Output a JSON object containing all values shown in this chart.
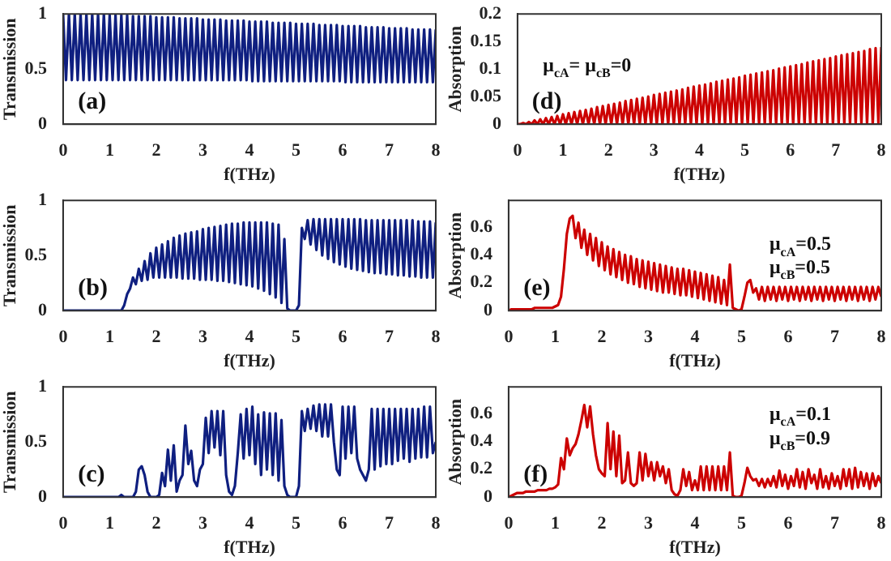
{
  "chart_data": [
    {
      "type": "line",
      "xlabel": "f(THz)",
      "ylabel": "Transmission",
      "xlim": [
        0,
        8
      ],
      "xticks": [
        0,
        1,
        2,
        3,
        4,
        5,
        6,
        7,
        8
      ],
      "ylim": [
        0,
        1
      ],
      "yticks": [
        0,
        0.5,
        1
      ],
      "annotations": [
        "(a)"
      ],
      "x": [
        0,
        0.0625,
        0.125,
        0.1875,
        0.25,
        0.3125,
        0.375,
        0.4375,
        0.5,
        0.5625,
        0.625,
        0.6875,
        0.75,
        0.8125,
        0.875,
        0.9375,
        1,
        1.0625,
        1.125,
        1.1875,
        1.25,
        1.3125,
        1.375,
        1.4375,
        1.5,
        1.5625,
        1.625,
        1.6875,
        1.75,
        1.8125,
        1.875,
        1.9375,
        2,
        2.0625,
        2.125,
        2.1875,
        2.25,
        2.3125,
        2.375,
        2.4375,
        2.5,
        2.5625,
        2.625,
        2.6875,
        2.75,
        2.8125,
        2.875,
        2.9375,
        3,
        3.0625,
        3.125,
        3.1875,
        3.25,
        3.3125,
        3.375,
        3.4375,
        3.5,
        3.5625,
        3.625,
        3.6875,
        3.75,
        3.8125,
        3.875,
        3.9375,
        4,
        4.0625,
        4.125,
        4.1875,
        4.25,
        4.3125,
        4.375,
        4.4375,
        4.5,
        4.5625,
        4.625,
        4.6875,
        4.75,
        4.8125,
        4.875,
        4.9375,
        5,
        5.0625,
        5.125,
        5.1875,
        5.25,
        5.3125,
        5.375,
        5.4375,
        5.5,
        5.5625,
        5.625,
        5.6875,
        5.75,
        5.8125,
        5.875,
        5.9375,
        6,
        6.0625,
        6.125,
        6.1875,
        6.25,
        6.3125,
        6.375,
        6.4375,
        6.5,
        6.5625,
        6.625,
        6.6875,
        6.75,
        6.8125,
        6.875,
        6.9375,
        7,
        7.0625,
        7.125,
        7.1875,
        7.25,
        7.3125,
        7.375,
        7.4375,
        7.5,
        7.5625,
        7.625,
        7.6875,
        7.75,
        7.8125,
        7.875,
        7.9375,
        8
      ],
      "series": [
        {
          "color": "#0f1f80",
          "values": [
            1,
            0.4,
            1,
            0.4,
            1,
            0.4,
            1,
            0.4,
            1,
            0.4,
            1,
            0.4,
            1,
            0.4,
            1,
            0.4,
            0.99,
            0.4,
            0.99,
            0.4,
            0.99,
            0.4,
            0.99,
            0.4,
            0.98,
            0.4,
            0.98,
            0.4,
            0.98,
            0.4,
            0.98,
            0.4,
            0.97,
            0.4,
            0.97,
            0.4,
            0.97,
            0.4,
            0.97,
            0.4,
            0.96,
            0.4,
            0.96,
            0.4,
            0.96,
            0.4,
            0.96,
            0.4,
            0.95,
            0.4,
            0.95,
            0.4,
            0.95,
            0.4,
            0.95,
            0.4,
            0.94,
            0.4,
            0.94,
            0.4,
            0.94,
            0.4,
            0.94,
            0.4,
            0.93,
            0.39,
            0.93,
            0.39,
            0.93,
            0.39,
            0.93,
            0.39,
            0.92,
            0.39,
            0.92,
            0.39,
            0.92,
            0.39,
            0.92,
            0.39,
            0.91,
            0.39,
            0.91,
            0.39,
            0.91,
            0.39,
            0.91,
            0.39,
            0.9,
            0.39,
            0.9,
            0.39,
            0.9,
            0.39,
            0.9,
            0.39,
            0.89,
            0.38,
            0.89,
            0.38,
            0.89,
            0.38,
            0.89,
            0.38,
            0.88,
            0.38,
            0.88,
            0.38,
            0.88,
            0.38,
            0.88,
            0.38,
            0.87,
            0.38,
            0.87,
            0.38,
            0.87,
            0.38,
            0.87,
            0.38,
            0.86,
            0.38,
            0.86,
            0.38,
            0.86,
            0.38,
            0.86,
            0.38,
            0.86
          ]
        }
      ]
    },
    {
      "type": "line",
      "xlabel": "f(THz)",
      "ylabel": "Absorption",
      "xlim": [
        0,
        8
      ],
      "xticks": [
        0,
        1,
        2,
        3,
        4,
        5,
        6,
        7,
        8
      ],
      "ylim": [
        0,
        0.2
      ],
      "yticks": [
        0,
        0.05,
        0.1,
        0.15,
        0.2
      ],
      "annotations": [
        "(d)",
        "μ$_{cA}$= μ$_{cB}$=0"
      ],
      "x": [
        0,
        0.0625,
        0.125,
        0.1875,
        0.25,
        0.3125,
        0.375,
        0.4375,
        0.5,
        0.5625,
        0.625,
        0.6875,
        0.75,
        0.8125,
        0.875,
        0.9375,
        1,
        1.0625,
        1.125,
        1.1875,
        1.25,
        1.3125,
        1.375,
        1.4375,
        1.5,
        1.5625,
        1.625,
        1.6875,
        1.75,
        1.8125,
        1.875,
        1.9375,
        2,
        2.0625,
        2.125,
        2.1875,
        2.25,
        2.3125,
        2.375,
        2.4375,
        2.5,
        2.5625,
        2.625,
        2.6875,
        2.75,
        2.8125,
        2.875,
        2.9375,
        3,
        3.0625,
        3.125,
        3.1875,
        3.25,
        3.3125,
        3.375,
        3.4375,
        3.5,
        3.5625,
        3.625,
        3.6875,
        3.75,
        3.8125,
        3.875,
        3.9375,
        4,
        4.0625,
        4.125,
        4.1875,
        4.25,
        4.3125,
        4.375,
        4.4375,
        4.5,
        4.5625,
        4.625,
        4.6875,
        4.75,
        4.8125,
        4.875,
        4.9375,
        5,
        5.0625,
        5.125,
        5.1875,
        5.25,
        5.3125,
        5.375,
        5.4375,
        5.5,
        5.5625,
        5.625,
        5.6875,
        5.75,
        5.8125,
        5.875,
        5.9375,
        6,
        6.0625,
        6.125,
        6.1875,
        6.25,
        6.3125,
        6.375,
        6.4375,
        6.5,
        6.5625,
        6.625,
        6.6875,
        6.75,
        6.8125,
        6.875,
        6.9375,
        7,
        7.0625,
        7.125,
        7.1875,
        7.25,
        7.3125,
        7.375,
        7.4375,
        7.5,
        7.5625,
        7.625,
        7.6875,
        7.75,
        7.8125,
        7.875,
        7.9375,
        8
      ],
      "series": [
        {
          "color": "#cc0000",
          "values": [
            0,
            0,
            0.002,
            0,
            0.004,
            0,
            0.007,
            0,
            0.009,
            0,
            0.011,
            0,
            0.013,
            0,
            0.015,
            0,
            0.018,
            0,
            0.02,
            0,
            0.022,
            0,
            0.024,
            0,
            0.026,
            0,
            0.028,
            0,
            0.031,
            0,
            0.033,
            0,
            0.035,
            0,
            0.037,
            0,
            0.039,
            0,
            0.042,
            0,
            0.044,
            0,
            0.046,
            0,
            0.048,
            0,
            0.05,
            0,
            0.053,
            0,
            0.055,
            0,
            0.057,
            0,
            0.059,
            0,
            0.061,
            0,
            0.063,
            0,
            0.066,
            0,
            0.068,
            0,
            0.07,
            0,
            0.072,
            0,
            0.074,
            0,
            0.077,
            0,
            0.079,
            0,
            0.081,
            0,
            0.083,
            0,
            0.085,
            0,
            0.088,
            0,
            0.09,
            0,
            0.092,
            0,
            0.094,
            0,
            0.096,
            0,
            0.098,
            0,
            0.101,
            0,
            0.103,
            0,
            0.105,
            0,
            0.107,
            0,
            0.109,
            0,
            0.112,
            0,
            0.114,
            0,
            0.116,
            0,
            0.118,
            0,
            0.12,
            0,
            0.123,
            0,
            0.125,
            0,
            0.127,
            0,
            0.129,
            0,
            0.131,
            0,
            0.133,
            0,
            0.136,
            0,
            0.138,
            0,
            0.14
          ]
        }
      ]
    },
    {
      "type": "line",
      "xlabel": "f(THz)",
      "ylabel": "Transmission",
      "xlim": [
        0,
        8
      ],
      "xticks": [
        0,
        1,
        2,
        3,
        4,
        5,
        6,
        7,
        8
      ],
      "ylim": [
        0,
        1
      ],
      "yticks": [
        0,
        0.5,
        1
      ],
      "annotations": [
        "(b)"
      ],
      "x": [
        0,
        0.0625,
        0.125,
        0.1875,
        0.25,
        0.3125,
        0.375,
        0.4375,
        0.5,
        0.5625,
        0.625,
        0.6875,
        0.75,
        0.8125,
        0.875,
        0.9375,
        1,
        1.0625,
        1.125,
        1.1875,
        1.25,
        1.3125,
        1.375,
        1.4375,
        1.5,
        1.5625,
        1.625,
        1.6875,
        1.75,
        1.8125,
        1.875,
        1.9375,
        2,
        2.0625,
        2.125,
        2.1875,
        2.25,
        2.3125,
        2.375,
        2.4375,
        2.5,
        2.5625,
        2.625,
        2.6875,
        2.75,
        2.8125,
        2.875,
        2.9375,
        3,
        3.0625,
        3.125,
        3.1875,
        3.25,
        3.3125,
        3.375,
        3.4375,
        3.5,
        3.5625,
        3.625,
        3.6875,
        3.75,
        3.8125,
        3.875,
        3.9375,
        4,
        4.0625,
        4.125,
        4.1875,
        4.25,
        4.3125,
        4.375,
        4.4375,
        4.5,
        4.5625,
        4.625,
        4.6875,
        4.75,
        4.8125,
        4.875,
        4.9375,
        5,
        5.0625,
        5.125,
        5.1875,
        5.25,
        5.3125,
        5.375,
        5.4375,
        5.5,
        5.5625,
        5.625,
        5.6875,
        5.75,
        5.8125,
        5.875,
        5.9375,
        6,
        6.0625,
        6.125,
        6.1875,
        6.25,
        6.3125,
        6.375,
        6.4375,
        6.5,
        6.5625,
        6.625,
        6.6875,
        6.75,
        6.8125,
        6.875,
        6.9375,
        7,
        7.0625,
        7.125,
        7.1875,
        7.25,
        7.3125,
        7.375,
        7.4375,
        7.5,
        7.5625,
        7.625,
        7.6875,
        7.75,
        7.8125,
        7.875,
        7.9375,
        8
      ],
      "series": [
        {
          "color": "#0f1f80",
          "values": [
            0,
            0,
            0,
            0,
            0,
            0,
            0,
            0,
            0,
            0,
            0,
            0,
            0,
            0,
            0,
            0,
            0,
            0,
            0,
            0,
            0,
            0.05,
            0.15,
            0.2,
            0.3,
            0.24,
            0.38,
            0.27,
            0.45,
            0.28,
            0.52,
            0.3,
            0.57,
            0.3,
            0.6,
            0.3,
            0.63,
            0.3,
            0.66,
            0.3,
            0.68,
            0.29,
            0.7,
            0.29,
            0.71,
            0.29,
            0.72,
            0.28,
            0.74,
            0.28,
            0.75,
            0.28,
            0.76,
            0.27,
            0.77,
            0.27,
            0.78,
            0.26,
            0.79,
            0.25,
            0.79,
            0.24,
            0.8,
            0.23,
            0.8,
            0.22,
            0.8,
            0.2,
            0.8,
            0.18,
            0.8,
            0.15,
            0.79,
            0.12,
            0.78,
            0.07,
            0.65,
            0.02,
            0,
            0,
            0,
            0.05,
            0.75,
            0.65,
            0.82,
            0.6,
            0.83,
            0.55,
            0.83,
            0.5,
            0.83,
            0.47,
            0.83,
            0.44,
            0.83,
            0.42,
            0.83,
            0.4,
            0.83,
            0.38,
            0.83,
            0.37,
            0.83,
            0.36,
            0.82,
            0.35,
            0.82,
            0.34,
            0.82,
            0.34,
            0.82,
            0.33,
            0.82,
            0.33,
            0.82,
            0.32,
            0.82,
            0.32,
            0.82,
            0.31,
            0.82,
            0.31,
            0.81,
            0.3,
            0.81,
            0.3,
            0.81,
            0.3,
            0.8
          ]
        }
      ]
    },
    {
      "type": "line",
      "xlabel": "f(THz)",
      "ylabel": "Absorption",
      "xlim": [
        0,
        8
      ],
      "xticks": [
        0,
        1,
        2,
        3,
        4,
        5,
        6,
        7,
        8
      ],
      "ylim": [
        0,
        0.79
      ],
      "yticks": [
        0,
        0.2,
        0.4,
        0.6
      ],
      "annotations": [
        "(e)",
        "μ$_{cA}$=0.5",
        "μ$_{cB}$=0.5"
      ],
      "x": [
        0,
        0.0625,
        0.125,
        0.1875,
        0.25,
        0.3125,
        0.375,
        0.4375,
        0.5,
        0.5625,
        0.625,
        0.6875,
        0.75,
        0.8125,
        0.875,
        0.9375,
        1,
        1.0625,
        1.125,
        1.1875,
        1.25,
        1.3125,
        1.375,
        1.4375,
        1.5,
        1.5625,
        1.625,
        1.6875,
        1.75,
        1.8125,
        1.875,
        1.9375,
        2,
        2.0625,
        2.125,
        2.1875,
        2.25,
        2.3125,
        2.375,
        2.4375,
        2.5,
        2.5625,
        2.625,
        2.6875,
        2.75,
        2.8125,
        2.875,
        2.9375,
        3,
        3.0625,
        3.125,
        3.1875,
        3.25,
        3.3125,
        3.375,
        3.4375,
        3.5,
        3.5625,
        3.625,
        3.6875,
        3.75,
        3.8125,
        3.875,
        3.9375,
        4,
        4.0625,
        4.125,
        4.1875,
        4.25,
        4.3125,
        4.375,
        4.4375,
        4.5,
        4.5625,
        4.625,
        4.6875,
        4.75,
        4.8125,
        4.875,
        4.9375,
        5,
        5.0625,
        5.125,
        5.1875,
        5.25,
        5.3125,
        5.375,
        5.4375,
        5.5,
        5.5625,
        5.625,
        5.6875,
        5.75,
        5.8125,
        5.875,
        5.9375,
        6,
        6.0625,
        6.125,
        6.1875,
        6.25,
        6.3125,
        6.375,
        6.4375,
        6.5,
        6.5625,
        6.625,
        6.6875,
        6.75,
        6.8125,
        6.875,
        6.9375,
        7,
        7.0625,
        7.125,
        7.1875,
        7.25,
        7.3125,
        7.375,
        7.4375,
        7.5,
        7.5625,
        7.625,
        7.6875,
        7.75,
        7.8125,
        7.875,
        7.9375,
        8
      ],
      "series": [
        {
          "color": "#cc0000",
          "values": [
            0,
            0.01,
            0.01,
            0.01,
            0.01,
            0.01,
            0.01,
            0.01,
            0.01,
            0.02,
            0.02,
            0.02,
            0.02,
            0.02,
            0.02,
            0.02,
            0.03,
            0.04,
            0.1,
            0.3,
            0.55,
            0.66,
            0.68,
            0.52,
            0.63,
            0.45,
            0.58,
            0.4,
            0.55,
            0.36,
            0.52,
            0.32,
            0.49,
            0.29,
            0.46,
            0.26,
            0.44,
            0.24,
            0.42,
            0.22,
            0.4,
            0.2,
            0.39,
            0.19,
            0.37,
            0.17,
            0.36,
            0.16,
            0.35,
            0.15,
            0.34,
            0.14,
            0.33,
            0.13,
            0.32,
            0.13,
            0.31,
            0.12,
            0.3,
            0.11,
            0.3,
            0.11,
            0.29,
            0.1,
            0.28,
            0.09,
            0.27,
            0.08,
            0.26,
            0.07,
            0.25,
            0.06,
            0.24,
            0.05,
            0.22,
            0.04,
            0.33,
            0.02,
            0.01,
            0,
            0.01,
            0.1,
            0.2,
            0.22,
            0.13,
            0.16,
            0.08,
            0.17,
            0.07,
            0.17,
            0.08,
            0.17,
            0.07,
            0.17,
            0.08,
            0.17,
            0.07,
            0.17,
            0.08,
            0.17,
            0.07,
            0.17,
            0.08,
            0.17,
            0.07,
            0.17,
            0.08,
            0.17,
            0.07,
            0.17,
            0.08,
            0.17,
            0.07,
            0.17,
            0.08,
            0.17,
            0.07,
            0.17,
            0.08,
            0.17,
            0.07,
            0.17,
            0.08,
            0.17,
            0.07,
            0.17,
            0.08,
            0.17,
            0.1
          ]
        }
      ]
    },
    {
      "type": "line",
      "xlabel": "f(THz)",
      "ylabel": "Transmission",
      "xlim": [
        0,
        8
      ],
      "xticks": [
        0,
        1,
        2,
        3,
        4,
        5,
        6,
        7,
        8
      ],
      "ylim": [
        0,
        1
      ],
      "yticks": [
        0,
        0.5,
        1
      ],
      "annotations": [
        "(c)"
      ],
      "x": [
        0,
        0.0625,
        0.125,
        0.1875,
        0.25,
        0.3125,
        0.375,
        0.4375,
        0.5,
        0.5625,
        0.625,
        0.6875,
        0.75,
        0.8125,
        0.875,
        0.9375,
        1,
        1.0625,
        1.125,
        1.1875,
        1.25,
        1.3125,
        1.375,
        1.4375,
        1.5,
        1.5625,
        1.625,
        1.6875,
        1.75,
        1.8125,
        1.875,
        1.9375,
        2,
        2.0625,
        2.125,
        2.1875,
        2.25,
        2.3125,
        2.375,
        2.4375,
        2.5,
        2.5625,
        2.625,
        2.6875,
        2.75,
        2.8125,
        2.875,
        2.9375,
        3,
        3.0625,
        3.125,
        3.1875,
        3.25,
        3.3125,
        3.375,
        3.4375,
        3.5,
        3.5625,
        3.625,
        3.6875,
        3.75,
        3.8125,
        3.875,
        3.9375,
        4,
        4.0625,
        4.125,
        4.1875,
        4.25,
        4.3125,
        4.375,
        4.4375,
        4.5,
        4.5625,
        4.625,
        4.6875,
        4.75,
        4.8125,
        4.875,
        4.9375,
        5,
        5.0625,
        5.125,
        5.1875,
        5.25,
        5.3125,
        5.375,
        5.4375,
        5.5,
        5.5625,
        5.625,
        5.6875,
        5.75,
        5.8125,
        5.875,
        5.9375,
        6,
        6.0625,
        6.125,
        6.1875,
        6.25,
        6.3125,
        6.375,
        6.4375,
        6.5,
        6.5625,
        6.625,
        6.6875,
        6.75,
        6.8125,
        6.875,
        6.9375,
        7,
        7.0625,
        7.125,
        7.1875,
        7.25,
        7.3125,
        7.375,
        7.4375,
        7.5,
        7.5625,
        7.625,
        7.6875,
        7.75,
        7.8125,
        7.875,
        7.9375,
        8
      ],
      "series": [
        {
          "color": "#0f1f80",
          "values": [
            0,
            0,
            0,
            0,
            0,
            0,
            0,
            0,
            0,
            0,
            0,
            0,
            0,
            0,
            0,
            0,
            0,
            0,
            0,
            0,
            0.02,
            0,
            0,
            0,
            0,
            0.05,
            0.25,
            0.28,
            0.2,
            0.05,
            0,
            0,
            0,
            0.02,
            0.22,
            0.1,
            0.43,
            0.15,
            0.47,
            0.05,
            0.15,
            0.2,
            0.65,
            0.3,
            0.42,
            0.15,
            0.1,
            0.25,
            0.3,
            0.72,
            0.4,
            0.78,
            0.45,
            0.78,
            0.38,
            0.78,
            0.2,
            0.05,
            0.02,
            0.1,
            0.4,
            0.75,
            0.35,
            0.8,
            0.38,
            0.82,
            0.3,
            0.75,
            0.2,
            0.77,
            0.25,
            0.76,
            0.2,
            0.76,
            0.15,
            0.7,
            0.1,
            0.02,
            0,
            0,
            0,
            0.1,
            0.78,
            0.6,
            0.8,
            0.62,
            0.83,
            0.6,
            0.84,
            0.55,
            0.84,
            0.55,
            0.84,
            0.5,
            0.25,
            0.2,
            0.82,
            0.35,
            0.82,
            0.4,
            0.82,
            0.35,
            0.25,
            0.2,
            0.15,
            0.25,
            0.8,
            0.25,
            0.8,
            0.28,
            0.8,
            0.3,
            0.8,
            0.3,
            0.8,
            0.33,
            0.8,
            0.35,
            0.8,
            0.32,
            0.8,
            0.35,
            0.8,
            0.36,
            0.82,
            0.36,
            0.82,
            0.4,
            0.5
          ]
        }
      ]
    },
    {
      "type": "line",
      "xlabel": "f(THz)",
      "ylabel": "Absorption",
      "xlim": [
        0,
        8
      ],
      "xticks": [
        0,
        1,
        2,
        3,
        4,
        5,
        6,
        7,
        8
      ],
      "ylim": [
        0,
        0.79
      ],
      "yticks": [
        0,
        0.2,
        0.4,
        0.6
      ],
      "annotations": [
        "(f)",
        "μ$_{cA}$=0.1",
        "μ$_{cB}$=0.9"
      ],
      "x": [
        0,
        0.0625,
        0.125,
        0.1875,
        0.25,
        0.3125,
        0.375,
        0.4375,
        0.5,
        0.5625,
        0.625,
        0.6875,
        0.75,
        0.8125,
        0.875,
        0.9375,
        1,
        1.0625,
        1.125,
        1.1875,
        1.25,
        1.3125,
        1.375,
        1.4375,
        1.5,
        1.5625,
        1.625,
        1.6875,
        1.75,
        1.8125,
        1.875,
        1.9375,
        2,
        2.0625,
        2.125,
        2.1875,
        2.25,
        2.3125,
        2.375,
        2.4375,
        2.5,
        2.5625,
        2.625,
        2.6875,
        2.75,
        2.8125,
        2.875,
        2.9375,
        3,
        3.0625,
        3.125,
        3.1875,
        3.25,
        3.3125,
        3.375,
        3.4375,
        3.5,
        3.5625,
        3.625,
        3.6875,
        3.75,
        3.8125,
        3.875,
        3.9375,
        4,
        4.0625,
        4.125,
        4.1875,
        4.25,
        4.3125,
        4.375,
        4.4375,
        4.5,
        4.5625,
        4.625,
        4.6875,
        4.75,
        4.8125,
        4.875,
        4.9375,
        5,
        5.0625,
        5.125,
        5.1875,
        5.25,
        5.3125,
        5.375,
        5.4375,
        5.5,
        5.5625,
        5.625,
        5.6875,
        5.75,
        5.8125,
        5.875,
        5.9375,
        6,
        6.0625,
        6.125,
        6.1875,
        6.25,
        6.3125,
        6.375,
        6.4375,
        6.5,
        6.5625,
        6.625,
        6.6875,
        6.75,
        6.8125,
        6.875,
        6.9375,
        7,
        7.0625,
        7.125,
        7.1875,
        7.25,
        7.3125,
        7.375,
        7.4375,
        7.5,
        7.5625,
        7.625,
        7.6875,
        7.75,
        7.8125,
        7.875,
        7.9375,
        8
      ],
      "series": [
        {
          "color": "#cc0000",
          "values": [
            0,
            0.01,
            0.02,
            0.03,
            0.03,
            0.03,
            0.04,
            0.04,
            0.04,
            0.04,
            0.05,
            0.05,
            0.05,
            0.05,
            0.06,
            0.06,
            0.07,
            0.09,
            0.28,
            0.2,
            0.42,
            0.3,
            0.35,
            0.38,
            0.45,
            0.55,
            0.66,
            0.5,
            0.65,
            0.45,
            0.3,
            0.2,
            0.17,
            0.15,
            0.53,
            0.2,
            0.47,
            0.15,
            0.44,
            0.1,
            0.12,
            0.32,
            0.1,
            0.08,
            0.1,
            0.32,
            0.12,
            0.31,
            0.15,
            0.25,
            0.12,
            0.25,
            0.15,
            0.22,
            0.1,
            0.2,
            0.05,
            0.02,
            0.01,
            0.05,
            0.2,
            0.08,
            0.18,
            0.05,
            0.12,
            0.05,
            0.22,
            0.05,
            0.22,
            0.05,
            0.22,
            0.05,
            0.22,
            0.05,
            0.22,
            0.05,
            0.32,
            0.01,
            0,
            0,
            0.01,
            0.1,
            0.21,
            0.15,
            0.12,
            0.13,
            0.08,
            0.13,
            0.07,
            0.13,
            0.08,
            0.15,
            0.07,
            0.19,
            0.08,
            0.16,
            0.06,
            0.15,
            0.08,
            0.2,
            0.07,
            0.18,
            0.06,
            0.2,
            0.1,
            0.16,
            0.06,
            0.2,
            0.07,
            0.15,
            0.06,
            0.17,
            0.08,
            0.15,
            0.06,
            0.2,
            0.08,
            0.2,
            0.06,
            0.21,
            0.07,
            0.18,
            0.08,
            0.17,
            0.06,
            0.17,
            0.08,
            0.15,
            0.1
          ]
        }
      ]
    }
  ]
}
